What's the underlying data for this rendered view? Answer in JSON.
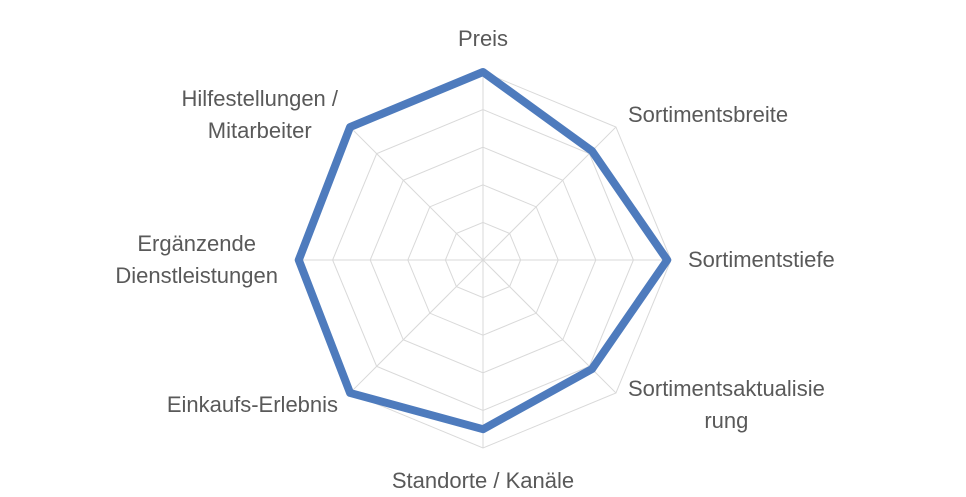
{
  "chart_data": {
    "type": "radar",
    "categories": [
      "Preis",
      "Sortimentsbreite",
      "Sortimentstiefe",
      "Sortimentsaktualisie\nrung",
      "Standorte / Kanäle",
      "Einkaufs-Erlebnis",
      "Ergänzende\nDienstleistungen",
      "Hilfestellungen /\nMitarbeiter"
    ],
    "series": [
      {
        "color": "#4e7bbd",
        "values": [
          5,
          4.1,
          4.9,
          4.1,
          4.5,
          5,
          4.9,
          5
        ]
      }
    ],
    "rlim": [
      0,
      5
    ],
    "rticks": [
      1,
      2,
      3,
      4,
      5
    ],
    "grid": true
  }
}
